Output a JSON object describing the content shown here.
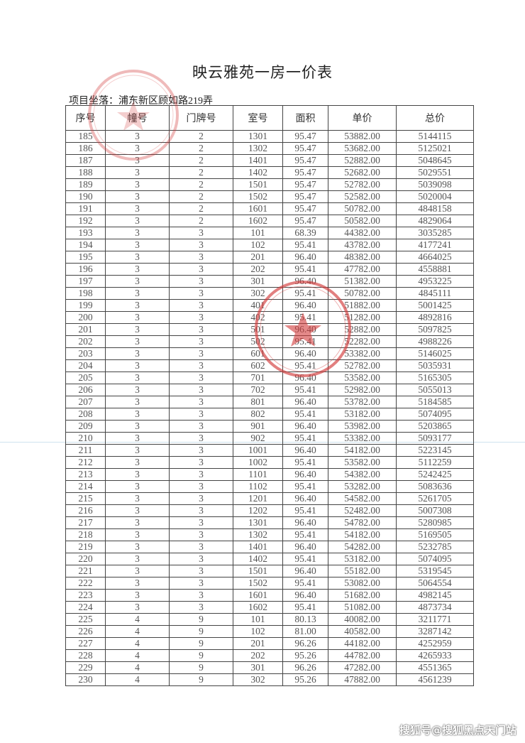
{
  "document": {
    "title": "映云雅苑一房一价表",
    "location": "项目坐落：浦东新区顾如路219弄"
  },
  "table": {
    "headers": [
      "序号",
      "幢号",
      "门牌号",
      "室号",
      "面积",
      "单价",
      "总价"
    ],
    "rows": [
      [
        "185",
        "3",
        "2",
        "1301",
        "95.47",
        "53882.00",
        "5144115"
      ],
      [
        "186",
        "3",
        "2",
        "1302",
        "95.47",
        "53682.00",
        "5125021"
      ],
      [
        "187",
        "3",
        "2",
        "1401",
        "95.47",
        "52882.00",
        "5048645"
      ],
      [
        "188",
        "3",
        "2",
        "1402",
        "95.47",
        "52682.00",
        "5029551"
      ],
      [
        "189",
        "3",
        "2",
        "1501",
        "95.47",
        "52782.00",
        "5039098"
      ],
      [
        "190",
        "3",
        "2",
        "1502",
        "95.47",
        "52582.00",
        "5020004"
      ],
      [
        "191",
        "3",
        "2",
        "1601",
        "95.47",
        "50782.00",
        "4848158"
      ],
      [
        "192",
        "3",
        "2",
        "1602",
        "95.47",
        "50582.00",
        "4829064"
      ],
      [
        "193",
        "3",
        "3",
        "101",
        "68.39",
        "44382.00",
        "3035285"
      ],
      [
        "194",
        "3",
        "3",
        "102",
        "95.41",
        "43782.00",
        "4177241"
      ],
      [
        "195",
        "3",
        "3",
        "201",
        "96.40",
        "48382.00",
        "4664025"
      ],
      [
        "196",
        "3",
        "3",
        "202",
        "95.41",
        "47782.00",
        "4558881"
      ],
      [
        "197",
        "3",
        "3",
        "301",
        "96.40",
        "51382.00",
        "4953225"
      ],
      [
        "198",
        "3",
        "3",
        "302",
        "95.41",
        "50782.00",
        "4845111"
      ],
      [
        "199",
        "3",
        "3",
        "401",
        "96.40",
        "51882.00",
        "5001425"
      ],
      [
        "200",
        "3",
        "3",
        "402",
        "95.41",
        "51282.00",
        "4892816"
      ],
      [
        "201",
        "3",
        "3",
        "501",
        "96.40",
        "52882.00",
        "5097825"
      ],
      [
        "202",
        "3",
        "3",
        "502",
        "95.41",
        "52282.00",
        "4988226"
      ],
      [
        "203",
        "3",
        "3",
        "601",
        "96.40",
        "53382.00",
        "5146025"
      ],
      [
        "204",
        "3",
        "3",
        "602",
        "95.41",
        "52782.00",
        "5035931"
      ],
      [
        "205",
        "3",
        "3",
        "701",
        "96.40",
        "53582.00",
        "5165305"
      ],
      [
        "206",
        "3",
        "3",
        "702",
        "95.41",
        "52982.00",
        "5055013"
      ],
      [
        "207",
        "3",
        "3",
        "801",
        "96.40",
        "53782.00",
        "5184585"
      ],
      [
        "208",
        "3",
        "3",
        "802",
        "95.41",
        "53182.00",
        "5074095"
      ],
      [
        "209",
        "3",
        "3",
        "901",
        "96.40",
        "53982.00",
        "5203865"
      ],
      [
        "210",
        "3",
        "3",
        "902",
        "95.41",
        "53382.00",
        "5093177"
      ],
      [
        "211",
        "3",
        "3",
        "1001",
        "96.40",
        "54182.00",
        "5223145"
      ],
      [
        "212",
        "3",
        "3",
        "1002",
        "95.41",
        "53582.00",
        "5112259"
      ],
      [
        "213",
        "3",
        "3",
        "1101",
        "96.40",
        "54382.00",
        "5242425"
      ],
      [
        "214",
        "3",
        "3",
        "1102",
        "95.41",
        "53282.00",
        "5083636"
      ],
      [
        "215",
        "3",
        "3",
        "1201",
        "96.40",
        "54582.00",
        "5261705"
      ],
      [
        "216",
        "3",
        "3",
        "1202",
        "95.41",
        "52482.00",
        "5007308"
      ],
      [
        "217",
        "3",
        "3",
        "1301",
        "96.40",
        "54782.00",
        "5280985"
      ],
      [
        "218",
        "3",
        "3",
        "1302",
        "95.41",
        "54182.00",
        "5169505"
      ],
      [
        "219",
        "3",
        "3",
        "1401",
        "96.40",
        "54282.00",
        "5232785"
      ],
      [
        "220",
        "3",
        "3",
        "1402",
        "95.41",
        "53182.00",
        "5074095"
      ],
      [
        "221",
        "3",
        "3",
        "1501",
        "96.40",
        "55182.00",
        "5319545"
      ],
      [
        "222",
        "3",
        "3",
        "1502",
        "95.41",
        "53082.00",
        "5064554"
      ],
      [
        "223",
        "3",
        "3",
        "1601",
        "96.40",
        "51682.00",
        "4982145"
      ],
      [
        "224",
        "3",
        "3",
        "1602",
        "95.41",
        "51082.00",
        "4873734"
      ],
      [
        "225",
        "4",
        "9",
        "101",
        "80.13",
        "40082.00",
        "3211771"
      ],
      [
        "226",
        "4",
        "9",
        "102",
        "81.00",
        "40582.00",
        "3287142"
      ],
      [
        "227",
        "4",
        "9",
        "201",
        "96.26",
        "44182.00",
        "4252959"
      ],
      [
        "228",
        "4",
        "9",
        "202",
        "95.26",
        "44782.00",
        "4265933"
      ],
      [
        "229",
        "4",
        "9",
        "301",
        "96.26",
        "47282.00",
        "4551365"
      ],
      [
        "230",
        "4",
        "9",
        "302",
        "95.26",
        "47882.00",
        "4561239"
      ]
    ]
  },
  "stamps": {
    "color": "#d23a3a"
  },
  "watermark": "搜狐号@搜狐黑点天门站"
}
